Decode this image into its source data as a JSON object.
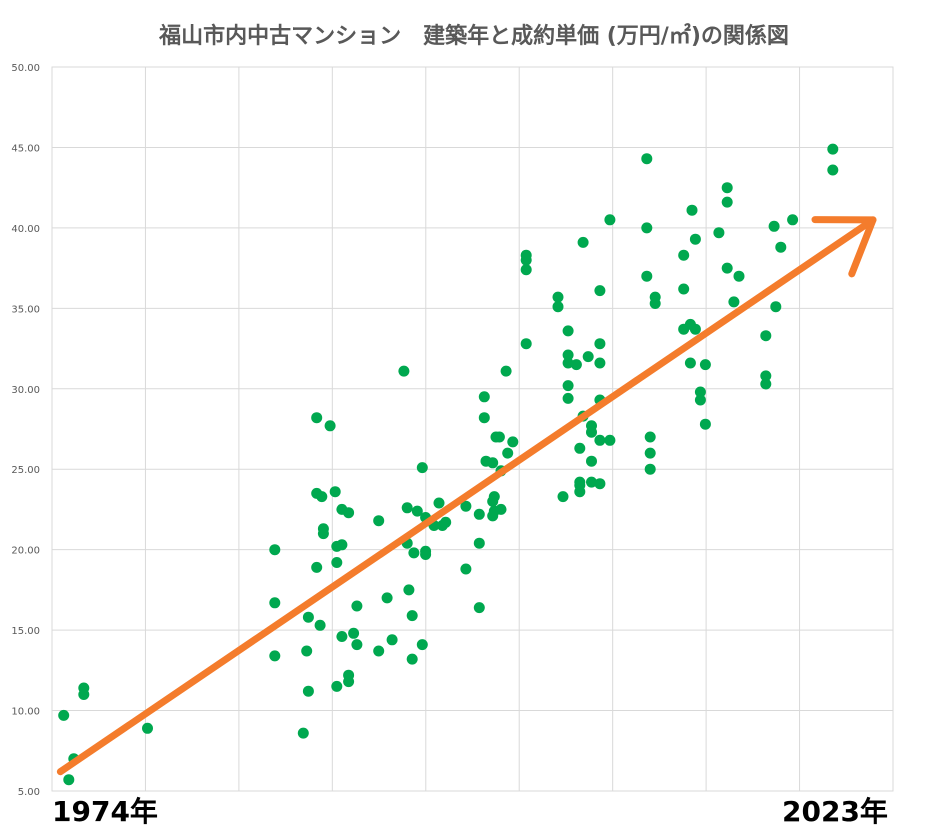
{
  "chart_data": {
    "type": "scatter",
    "title": "福山市内中古マンション　建築年と成約単価 (万円/㎡)の関係図",
    "x_start_label": "1974年",
    "x_end_label": "2023年",
    "xlim": [
      1974,
      2023
    ],
    "ylim": [
      5,
      50
    ],
    "y_ticks": [
      "5.00",
      "10.00",
      "15.00",
      "20.00",
      "25.00",
      "30.00",
      "35.00",
      "40.00",
      "45.00",
      "50.00"
    ],
    "grid": true,
    "colors": {
      "points": "#00a84f",
      "trend": "#f47c2c",
      "grid": "#d9d9d9"
    },
    "trend_arrow": {
      "x": [
        1974.5,
        2023.0
      ],
      "y": [
        6.2,
        40.5
      ]
    },
    "points": [
      [
        1974.7,
        9.7
      ],
      [
        1975.3,
        7.0
      ],
      [
        1975.0,
        5.7
      ],
      [
        1975.9,
        11.4
      ],
      [
        1975.9,
        11.0
      ],
      [
        1979.7,
        8.9
      ],
      [
        1987.3,
        20.0
      ],
      [
        1987.3,
        16.7
      ],
      [
        1987.3,
        13.4
      ],
      [
        1989.0,
        8.6
      ],
      [
        1989.2,
        13.7
      ],
      [
        1989.3,
        11.2
      ],
      [
        1989.3,
        15.8
      ],
      [
        1989.8,
        18.9
      ],
      [
        1989.8,
        23.5
      ],
      [
        1989.8,
        28.2
      ],
      [
        1990.0,
        15.3
      ],
      [
        1990.1,
        23.3
      ],
      [
        1990.2,
        21.3
      ],
      [
        1990.2,
        21.0
      ],
      [
        1990.6,
        27.7
      ],
      [
        1990.9,
        23.6
      ],
      [
        1991.0,
        11.5
      ],
      [
        1991.0,
        19.2
      ],
      [
        1991.0,
        20.2
      ],
      [
        1991.3,
        20.3
      ],
      [
        1991.3,
        14.6
      ],
      [
        1991.3,
        22.5
      ],
      [
        1991.7,
        22.3
      ],
      [
        1991.7,
        12.2
      ],
      [
        1991.7,
        11.8
      ],
      [
        1992.0,
        14.8
      ],
      [
        1992.2,
        16.5
      ],
      [
        1992.2,
        14.1
      ],
      [
        1993.5,
        21.8
      ],
      [
        1993.5,
        13.7
      ],
      [
        1994.0,
        17.0
      ],
      [
        1994.3,
        14.4
      ],
      [
        1995.0,
        31.1
      ],
      [
        1995.2,
        20.4
      ],
      [
        1995.2,
        22.6
      ],
      [
        1995.3,
        17.5
      ],
      [
        1995.5,
        15.9
      ],
      [
        1995.5,
        13.2
      ],
      [
        1995.6,
        19.8
      ],
      [
        1995.8,
        22.4
      ],
      [
        1996.1,
        25.1
      ],
      [
        1996.1,
        14.1
      ],
      [
        1996.3,
        22.0
      ],
      [
        1996.3,
        19.9
      ],
      [
        1996.3,
        19.7
      ],
      [
        1996.8,
        21.5
      ],
      [
        1997.1,
        22.9
      ],
      [
        1997.3,
        21.5
      ],
      [
        1997.5,
        21.7
      ],
      [
        1998.7,
        18.8
      ],
      [
        1998.7,
        22.7
      ],
      [
        1999.5,
        16.4
      ],
      [
        1999.5,
        20.4
      ],
      [
        1999.5,
        22.2
      ],
      [
        1999.8,
        29.5
      ],
      [
        1999.8,
        28.2
      ],
      [
        1999.9,
        25.5
      ],
      [
        2000.3,
        25.4
      ],
      [
        2000.3,
        23.0
      ],
      [
        2000.3,
        22.1
      ],
      [
        2000.4,
        22.4
      ],
      [
        2000.4,
        23.3
      ],
      [
        2000.5,
        27.0
      ],
      [
        2000.7,
        27.0
      ],
      [
        2000.8,
        24.9
      ],
      [
        2000.8,
        22.5
      ],
      [
        2001.1,
        31.1
      ],
      [
        2001.2,
        26.0
      ],
      [
        2001.5,
        26.7
      ],
      [
        2002.3,
        38.3
      ],
      [
        2002.3,
        38.0
      ],
      [
        2002.3,
        37.4
      ],
      [
        2002.3,
        32.8
      ],
      [
        2004.2,
        35.7
      ],
      [
        2004.2,
        35.1
      ],
      [
        2004.5,
        23.3
      ],
      [
        2004.8,
        33.6
      ],
      [
        2004.8,
        32.1
      ],
      [
        2004.8,
        31.6
      ],
      [
        2004.8,
        30.2
      ],
      [
        2004.8,
        29.4
      ],
      [
        2005.3,
        31.5
      ],
      [
        2005.5,
        26.3
      ],
      [
        2005.5,
        24.2
      ],
      [
        2005.5,
        24.0
      ],
      [
        2005.5,
        23.6
      ],
      [
        2005.7,
        39.1
      ],
      [
        2005.7,
        28.3
      ],
      [
        2006.0,
        32.0
      ],
      [
        2006.2,
        27.7
      ],
      [
        2006.2,
        27.3
      ],
      [
        2006.2,
        25.5
      ],
      [
        2006.2,
        24.2
      ],
      [
        2006.7,
        36.1
      ],
      [
        2006.7,
        32.8
      ],
      [
        2006.7,
        31.6
      ],
      [
        2006.7,
        29.3
      ],
      [
        2006.7,
        26.8
      ],
      [
        2006.7,
        24.1
      ],
      [
        2007.3,
        40.5
      ],
      [
        2007.3,
        26.8
      ],
      [
        2009.5,
        44.3
      ],
      [
        2009.5,
        40.0
      ],
      [
        2009.5,
        37.0
      ],
      [
        2009.7,
        27.0
      ],
      [
        2009.7,
        26.0
      ],
      [
        2009.7,
        25.0
      ],
      [
        2010.0,
        35.7
      ],
      [
        2010.0,
        35.3
      ],
      [
        2011.7,
        38.3
      ],
      [
        2011.7,
        36.2
      ],
      [
        2011.7,
        33.7
      ],
      [
        2012.2,
        41.1
      ],
      [
        2012.1,
        34.0
      ],
      [
        2012.1,
        31.6
      ],
      [
        2012.4,
        39.3
      ],
      [
        2012.4,
        33.7
      ],
      [
        2012.7,
        29.8
      ],
      [
        2012.7,
        29.3
      ],
      [
        2013.0,
        31.5
      ],
      [
        2013.0,
        27.8
      ],
      [
        2013.8,
        39.7
      ],
      [
        2014.3,
        42.5
      ],
      [
        2014.3,
        41.6
      ],
      [
        2014.3,
        37.5
      ],
      [
        2014.7,
        35.4
      ],
      [
        2015.0,
        37.0
      ],
      [
        2016.6,
        33.3
      ],
      [
        2016.6,
        30.8
      ],
      [
        2016.6,
        30.3
      ],
      [
        2017.1,
        40.1
      ],
      [
        2017.2,
        35.1
      ],
      [
        2017.5,
        38.8
      ],
      [
        2018.2,
        40.5
      ],
      [
        2020.6,
        44.9
      ],
      [
        2020.6,
        43.6
      ]
    ]
  }
}
